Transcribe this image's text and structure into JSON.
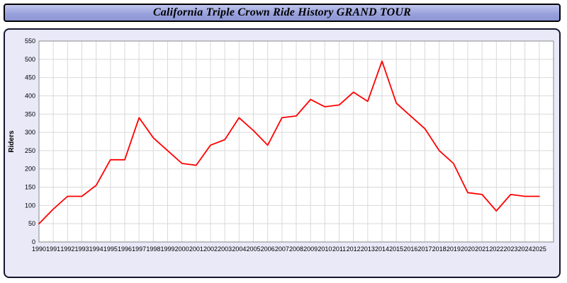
{
  "window": {
    "title": "California Triple Crown Ride History GRAND TOUR"
  },
  "chart_data": {
    "type": "line",
    "title": "California Triple Crown Ride History GRAND TOUR",
    "xlabel": "",
    "ylabel": "Riders",
    "ylim": [
      0,
      550
    ],
    "ytick_step": 50,
    "grid": true,
    "legend_position": "none",
    "line_color": "#ff0000",
    "x": [
      1990,
      1991,
      1992,
      1993,
      1994,
      1995,
      1996,
      1997,
      1998,
      1999,
      2000,
      2001,
      2002,
      2003,
      2004,
      2005,
      2006,
      2007,
      2008,
      2009,
      2010,
      2011,
      2012,
      2013,
      2014,
      2015,
      2016,
      2017,
      2018,
      2019,
      2020,
      2021,
      2022,
      2023,
      2024,
      2025
    ],
    "series": [
      {
        "name": "Riders",
        "values": [
          50,
          90,
          125,
          125,
          155,
          225,
          225,
          340,
          285,
          250,
          215,
          210,
          265,
          280,
          340,
          305,
          265,
          340,
          345,
          390,
          370,
          375,
          410,
          385,
          495,
          380,
          345,
          310,
          250,
          215,
          135,
          130,
          85,
          130,
          125,
          125
        ]
      }
    ]
  }
}
